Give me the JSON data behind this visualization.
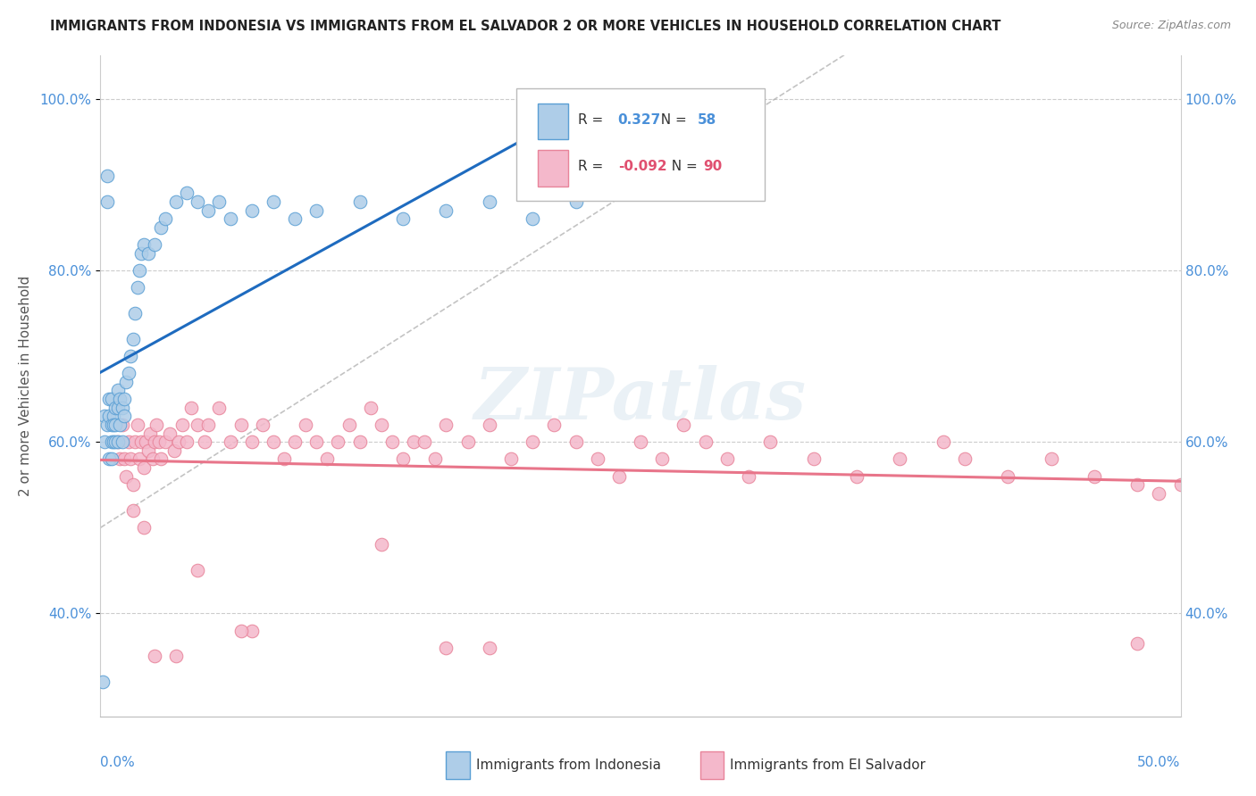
{
  "title": "IMMIGRANTS FROM INDONESIA VS IMMIGRANTS FROM EL SALVADOR 2 OR MORE VEHICLES IN HOUSEHOLD CORRELATION CHART",
  "source": "Source: ZipAtlas.com",
  "ylabel": "2 or more Vehicles in Household",
  "y_ticks": [
    0.4,
    0.6,
    0.8,
    1.0
  ],
  "y_tick_labels": [
    "40.0%",
    "60.0%",
    "80.0%",
    "100.0%"
  ],
  "x_lim": [
    0.0,
    0.5
  ],
  "y_lim": [
    0.28,
    1.05
  ],
  "legend_r_indonesia": "0.327",
  "legend_n_indonesia": "58",
  "legend_r_elsalvador": "-0.092",
  "legend_n_elsalvador": "90",
  "indonesia_color": "#aecde8",
  "elsalvador_color": "#f4b8cb",
  "indonesia_edge_color": "#5a9fd4",
  "elsalvador_edge_color": "#e8849a",
  "indonesia_line_color": "#1e6bbf",
  "elsalvador_line_color": "#e8758a",
  "watermark": "ZIPatlas",
  "indo_x": [
    0.001,
    0.002,
    0.002,
    0.003,
    0.003,
    0.003,
    0.004,
    0.004,
    0.004,
    0.005,
    0.005,
    0.005,
    0.005,
    0.006,
    0.006,
    0.006,
    0.007,
    0.007,
    0.007,
    0.008,
    0.008,
    0.008,
    0.009,
    0.009,
    0.01,
    0.01,
    0.011,
    0.011,
    0.012,
    0.013,
    0.014,
    0.015,
    0.016,
    0.017,
    0.018,
    0.019,
    0.02,
    0.022,
    0.025,
    0.028,
    0.03,
    0.035,
    0.04,
    0.045,
    0.05,
    0.055,
    0.06,
    0.07,
    0.08,
    0.09,
    0.1,
    0.12,
    0.14,
    0.16,
    0.18,
    0.2,
    0.21,
    0.22
  ],
  "indo_y": [
    0.32,
    0.6,
    0.63,
    0.88,
    0.91,
    0.62,
    0.58,
    0.65,
    0.63,
    0.6,
    0.62,
    0.58,
    0.65,
    0.6,
    0.63,
    0.62,
    0.6,
    0.64,
    0.62,
    0.6,
    0.64,
    0.66,
    0.62,
    0.65,
    0.6,
    0.64,
    0.65,
    0.63,
    0.67,
    0.68,
    0.7,
    0.72,
    0.75,
    0.78,
    0.8,
    0.82,
    0.83,
    0.82,
    0.83,
    0.85,
    0.86,
    0.88,
    0.89,
    0.88,
    0.87,
    0.88,
    0.86,
    0.87,
    0.88,
    0.86,
    0.87,
    0.88,
    0.86,
    0.87,
    0.88,
    0.86,
    0.9,
    0.88
  ],
  "salv_x": [
    0.008,
    0.009,
    0.01,
    0.011,
    0.012,
    0.013,
    0.014,
    0.015,
    0.016,
    0.017,
    0.018,
    0.019,
    0.02,
    0.021,
    0.022,
    0.023,
    0.024,
    0.025,
    0.026,
    0.027,
    0.028,
    0.03,
    0.032,
    0.034,
    0.036,
    0.038,
    0.04,
    0.042,
    0.045,
    0.048,
    0.05,
    0.055,
    0.06,
    0.065,
    0.07,
    0.075,
    0.08,
    0.085,
    0.09,
    0.095,
    0.1,
    0.105,
    0.11,
    0.115,
    0.12,
    0.125,
    0.13,
    0.135,
    0.14,
    0.145,
    0.15,
    0.155,
    0.16,
    0.17,
    0.18,
    0.19,
    0.2,
    0.21,
    0.22,
    0.23,
    0.24,
    0.25,
    0.26,
    0.27,
    0.28,
    0.29,
    0.3,
    0.31,
    0.33,
    0.35,
    0.37,
    0.39,
    0.4,
    0.42,
    0.44,
    0.46,
    0.48,
    0.49,
    0.5,
    0.07,
    0.13,
    0.16,
    0.18,
    0.065,
    0.045,
    0.035,
    0.025,
    0.02,
    0.015,
    0.48
  ],
  "salv_y": [
    0.6,
    0.58,
    0.62,
    0.58,
    0.56,
    0.6,
    0.58,
    0.55,
    0.6,
    0.62,
    0.58,
    0.6,
    0.57,
    0.6,
    0.59,
    0.61,
    0.58,
    0.6,
    0.62,
    0.6,
    0.58,
    0.6,
    0.61,
    0.59,
    0.6,
    0.62,
    0.6,
    0.64,
    0.62,
    0.6,
    0.62,
    0.64,
    0.6,
    0.62,
    0.6,
    0.62,
    0.6,
    0.58,
    0.6,
    0.62,
    0.6,
    0.58,
    0.6,
    0.62,
    0.6,
    0.64,
    0.62,
    0.6,
    0.58,
    0.6,
    0.6,
    0.58,
    0.62,
    0.6,
    0.62,
    0.58,
    0.6,
    0.62,
    0.6,
    0.58,
    0.56,
    0.6,
    0.58,
    0.62,
    0.6,
    0.58,
    0.56,
    0.6,
    0.58,
    0.56,
    0.58,
    0.6,
    0.58,
    0.56,
    0.58,
    0.56,
    0.55,
    0.54,
    0.55,
    0.38,
    0.48,
    0.36,
    0.36,
    0.38,
    0.45,
    0.35,
    0.35,
    0.5,
    0.52,
    0.365
  ]
}
